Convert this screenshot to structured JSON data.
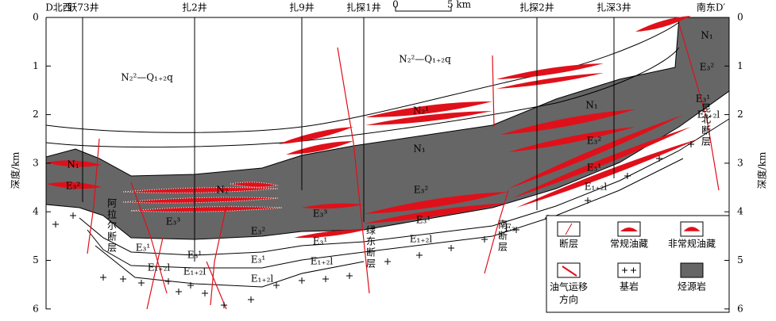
{
  "ends": {
    "left": "D北西",
    "right": "南东D′"
  },
  "wells": [
    "跃73井",
    "扎2井",
    "扎9井",
    "扎探1井",
    "扎探2井",
    "扎深3井"
  ],
  "scale": {
    "zero": "0",
    "length": "5 km"
  },
  "axis": {
    "label": "深度/km",
    "ticks": [
      0,
      1,
      2,
      3,
      4,
      5,
      6
    ]
  },
  "formations": [
    "N₂²—Q₁₊₂q",
    "N₂²—Q₁₊₂q",
    "N₂¹",
    "N₁",
    "N₁",
    "N₁",
    "N₁",
    "E₃²",
    "E₃²",
    "E₃²",
    "E₃²",
    "N₂",
    "E₃³",
    "E₃³",
    "E₃²",
    "E₃¹",
    "E₃¹",
    "E₃¹",
    "E₃¹",
    "E₃¹",
    "E₃¹",
    "E₃¹",
    "E₁₊₂l",
    "E₁₊₂l",
    "E₁₊₂l",
    "E₁₊₂l",
    "E₁₊₂l",
    "E₁₊₂l",
    "E₁₊₂l",
    "E₃"
  ],
  "faults": [
    "阿拉尔断层",
    "绿东断层",
    "南断层",
    "昆北断层"
  ],
  "legend": [
    "断层",
    "常规油藏",
    "非常规油藏",
    "油气运移方向",
    "基岩",
    "烃源岩"
  ]
}
